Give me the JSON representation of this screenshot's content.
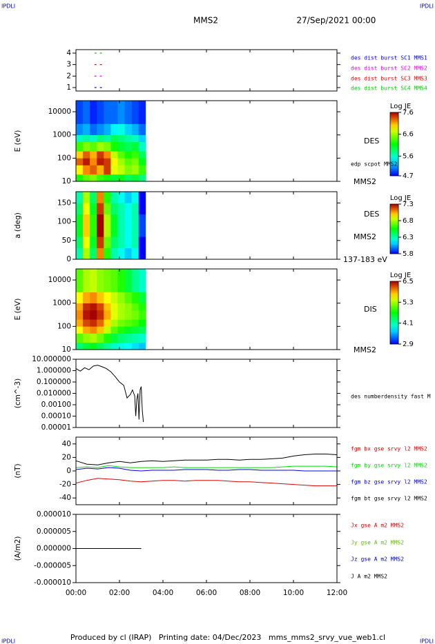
{
  "header": {
    "left_logo": "IPDLI",
    "right_logo": "IPDLI",
    "title": "MMS2",
    "date": "27/Sep/2021 00:00"
  },
  "footer": {
    "text": "Produced by cl (IRAP)   Printing date: 04/Dec/2023   mms_mms2_srvy_vue_web1.cl",
    "left_logo": "IPDLI",
    "right_logo": "IPDLI"
  },
  "chart_data": [
    {
      "type": "event",
      "xlim": [
        0,
        12
      ],
      "ylim": [
        0.7,
        4.3
      ],
      "yticks": [
        1,
        2,
        3,
        4
      ],
      "series": [
        {
          "name": "des dist burst SC1 MMS1",
          "color": "#0000ff",
          "x": [
            0.85,
            1.1
          ],
          "values": [
            1,
            1
          ]
        },
        {
          "name": "des dist burst SC2 MMS2",
          "color": "#ee00ee",
          "x": [
            0.85,
            1.1
          ],
          "values": [
            2,
            2
          ]
        },
        {
          "name": "des dist burst SC3 MMS3",
          "color": "#ee0000",
          "x": [
            0.85,
            1.1
          ],
          "values": [
            3,
            3
          ]
        },
        {
          "name": "des dist burst SC4 MMS4",
          "color": "#00cc00",
          "x": [
            0.85,
            1.1
          ],
          "values": [
            4,
            4
          ]
        }
      ]
    },
    {
      "type": "heatmap",
      "ylabel": "E (eV)",
      "ylog": true,
      "xlim": [
        0,
        12
      ],
      "ylim": [
        10,
        30000
      ],
      "yticks": [
        10,
        100,
        1000,
        10000
      ],
      "x_bins": [
        0,
        0.32,
        0.64,
        0.96,
        1.28,
        1.6,
        1.92,
        2.24,
        2.56,
        2.88,
        3.2
      ],
      "y_bins": [
        10,
        20,
        50,
        100,
        200,
        500,
        1000,
        3000,
        30000
      ],
      "z": [
        [
          6.2,
          6.4,
          6.5,
          6.3,
          6.2,
          6.0,
          6.1,
          5.9,
          6.0,
          5.8
        ],
        [
          6.9,
          7.2,
          7.3,
          7.1,
          7.4,
          6.8,
          6.7,
          6.5,
          6.6,
          6.3
        ],
        [
          7.3,
          7.5,
          7.2,
          7.5,
          7.4,
          6.9,
          6.6,
          6.4,
          6.5,
          6.1
        ],
        [
          7.0,
          7.3,
          7.1,
          7.4,
          7.2,
          6.7,
          6.4,
          6.2,
          6.3,
          5.9
        ],
        [
          6.3,
          6.5,
          6.4,
          6.6,
          6.5,
          6.2,
          6.0,
          5.9,
          6.0,
          5.6
        ],
        [
          5.6,
          5.7,
          5.6,
          5.8,
          5.7,
          5.9,
          5.8,
          5.7,
          5.6,
          5.3
        ],
        [
          5.1,
          5.2,
          5.0,
          5.1,
          5.2,
          5.4,
          5.5,
          5.3,
          5.2,
          5.0
        ],
        [
          4.9,
          5.0,
          4.8,
          4.9,
          5.0,
          5.0,
          5.1,
          5.0,
          4.9,
          4.8
        ]
      ],
      "colorbar": {
        "title": "Log JE",
        "zlim": [
          4.7,
          7.6
        ],
        "ticks": [
          4.7,
          5.6,
          6.6,
          7.6
        ]
      },
      "annotations": [
        "DES",
        "edp scpot MMS2",
        "MMS2"
      ]
    },
    {
      "type": "heatmap",
      "ylabel": "a (deg)",
      "xlim": [
        0,
        12
      ],
      "ylim": [
        0,
        180
      ],
      "yticks": [
        0,
        50,
        100,
        150
      ],
      "x_bins": [
        0,
        0.32,
        0.64,
        0.96,
        1.28,
        1.6,
        1.92,
        2.24,
        2.56,
        2.88,
        3.2
      ],
      "y_bins": [
        0,
        30,
        60,
        90,
        120,
        150,
        180
      ],
      "z": [
        [
          6.3,
          6.8,
          6.4,
          7.1,
          6.6,
          6.3,
          6.2,
          6.1,
          6.2,
          5.8
        ],
        [
          6.4,
          6.9,
          6.5,
          7.2,
          6.7,
          6.4,
          6.3,
          6.2,
          6.3,
          5.8
        ],
        [
          6.5,
          7.0,
          6.6,
          7.3,
          6.8,
          6.5,
          6.3,
          6.2,
          6.3,
          5.9
        ],
        [
          6.5,
          7.0,
          6.6,
          7.3,
          6.8,
          6.5,
          6.3,
          6.2,
          6.3,
          5.9
        ],
        [
          6.4,
          6.9,
          6.5,
          7.2,
          6.7,
          6.4,
          6.3,
          6.2,
          6.3,
          5.8
        ],
        [
          6.3,
          6.8,
          6.4,
          7.1,
          6.6,
          6.3,
          6.2,
          6.1,
          6.2,
          5.8
        ]
      ],
      "colorbar": {
        "title": "Log JE",
        "zlim": [
          5.8,
          7.3
        ],
        "ticks": [
          5.8,
          6.3,
          6.8,
          7.3
        ]
      },
      "annotations": [
        "DES",
        "MMS2",
        "137-183 eV"
      ]
    },
    {
      "type": "heatmap",
      "ylabel": "E (eV)",
      "ylog": true,
      "xlim": [
        0,
        12
      ],
      "ylim": [
        10,
        30000
      ],
      "yticks": [
        10,
        100,
        1000,
        10000
      ],
      "x_bins": [
        0,
        0.32,
        0.64,
        0.96,
        1.28,
        1.6,
        1.92,
        2.24,
        2.56,
        2.88,
        3.2
      ],
      "y_bins": [
        10,
        20,
        50,
        100,
        200,
        500,
        1000,
        3000,
        30000
      ],
      "z": [
        [
          4.3,
          4.5,
          4.6,
          4.4,
          4.2,
          4.0,
          3.9,
          3.8,
          3.7,
          3.6
        ],
        [
          5.0,
          5.2,
          5.3,
          5.1,
          4.8,
          4.5,
          4.3,
          4.2,
          4.1,
          4.0
        ],
        [
          5.6,
          5.9,
          6.0,
          5.8,
          5.4,
          5.0,
          4.8,
          4.6,
          4.5,
          4.4
        ],
        [
          5.9,
          6.2,
          6.3,
          6.1,
          5.7,
          5.3,
          5.1,
          5.0,
          4.9,
          4.7
        ],
        [
          6.0,
          6.4,
          6.5,
          6.3,
          5.9,
          5.5,
          5.3,
          5.2,
          5.1,
          4.9
        ],
        [
          5.9,
          6.3,
          6.4,
          6.2,
          5.8,
          5.5,
          5.3,
          5.2,
          5.0,
          4.8
        ],
        [
          5.6,
          5.9,
          6.0,
          5.8,
          5.6,
          5.4,
          5.2,
          5.0,
          4.8,
          4.5
        ],
        [
          5.0,
          5.3,
          5.4,
          5.2,
          5.1,
          5.0,
          4.8,
          4.5,
          4.2,
          4.0
        ]
      ],
      "colorbar": {
        "title": "Log JE",
        "zlim": [
          2.9,
          6.5
        ],
        "ticks": [
          2.9,
          4.1,
          5.3,
          6.5
        ]
      },
      "annotations": [
        "DIS",
        "MMS2"
      ]
    },
    {
      "type": "line",
      "ylabel": "(cm^-3)",
      "ylog": true,
      "xlim": [
        0,
        12
      ],
      "ylim": [
        1e-05,
        10
      ],
      "yticks": [
        {
          "value": 10,
          "label": "10.000000"
        },
        {
          "value": 1,
          "label": "1.000000"
        },
        {
          "value": 0.1,
          "label": "0.100000"
        },
        {
          "value": 0.01,
          "label": "0.010000"
        },
        {
          "value": 0.001,
          "label": "0.00100"
        },
        {
          "value": 0.0001,
          "label": "0.00010"
        },
        {
          "value": 1e-05,
          "label": "0.00001"
        }
      ],
      "series": [
        {
          "name": "des numberdensity fast M",
          "color": "#000000",
          "x": [
            0,
            0.2,
            0.4,
            0.6,
            0.8,
            1.0,
            1.2,
            1.4,
            1.6,
            1.8,
            2.0,
            2.2,
            2.35,
            2.5,
            2.6,
            2.7,
            2.75,
            2.8,
            2.85,
            2.9,
            2.95,
            3.0,
            3.05,
            3.1
          ],
          "values": [
            1.5,
            0.9,
            1.8,
            1.2,
            2.5,
            3.0,
            2.2,
            1.5,
            0.8,
            0.3,
            0.1,
            0.05,
            0.004,
            0.008,
            0.02,
            0.006,
            0.0001,
            0.003,
            0.01,
            5e-05,
            0.02,
            0.04,
            0.0003,
            3e-05
          ]
        }
      ]
    },
    {
      "type": "line",
      "ylabel": "(nT)",
      "xlim": [
        0,
        12
      ],
      "ylim": [
        -50,
        50
      ],
      "yticks": [
        -40,
        -20,
        0,
        20,
        40
      ],
      "series": [
        {
          "name": "fgm bx gse srvy l2 MMS2",
          "color": "#dd0000",
          "x": [
            0,
            0.5,
            1,
            1.5,
            2,
            2.5,
            3,
            3.5,
            4,
            4.5,
            5,
            5.5,
            6,
            6.5,
            7,
            7.5,
            8,
            8.5,
            9,
            9.5,
            10,
            10.5,
            11,
            11.5,
            12
          ],
          "values": [
            -18,
            -14,
            -11,
            -12,
            -13,
            -15,
            -16,
            -15,
            -14,
            -14,
            -15,
            -14,
            -14,
            -14,
            -15,
            -16,
            -16,
            -17,
            -18,
            -19,
            -20,
            -21,
            -22,
            -22,
            -22
          ]
        },
        {
          "name": "fgm by gse srvy l2 MMS2",
          "color": "#00dd00",
          "x": [
            0,
            0.5,
            1,
            1.5,
            2,
            2.5,
            3,
            3.5,
            4,
            4.5,
            5,
            5.5,
            6,
            6.5,
            7,
            7.5,
            8,
            8.5,
            9,
            9.5,
            10,
            10.5,
            11,
            11.5,
            12
          ],
          "values": [
            5,
            6,
            5,
            8,
            6,
            5,
            5,
            5,
            5,
            6,
            5,
            5,
            5,
            5,
            5,
            5,
            5,
            5,
            5,
            6,
            7,
            7,
            7,
            7,
            6
          ]
        },
        {
          "name": "fgm bz gse srvy l2 MMS2",
          "color": "#0000dd",
          "x": [
            0,
            0.5,
            1,
            1.5,
            2,
            2.5,
            3,
            3.5,
            4,
            4.5,
            5,
            5.5,
            6,
            6.5,
            7,
            7.5,
            8,
            8.5,
            9,
            9.5,
            10,
            10.5,
            11,
            11.5,
            12
          ],
          "values": [
            2,
            4,
            3,
            5,
            4,
            1,
            0,
            1,
            1,
            1,
            2,
            2,
            2,
            1,
            1,
            2,
            2,
            1,
            1,
            1,
            1,
            0,
            0,
            0,
            0
          ]
        },
        {
          "name": "fgm bt gse srvy l2 MMS2",
          "color": "#000000",
          "x": [
            0,
            0.5,
            1,
            1.5,
            2,
            2.5,
            3,
            3.5,
            4,
            4.5,
            5,
            5.5,
            6,
            6.5,
            7,
            7.5,
            8,
            8.5,
            9,
            9.5,
            10,
            10.5,
            11,
            11.5,
            12
          ],
          "values": [
            15,
            10,
            9,
            12,
            14,
            12,
            14,
            15,
            14,
            15,
            16,
            16,
            16,
            17,
            17,
            16,
            17,
            17,
            18,
            19,
            22,
            24,
            25,
            25,
            24
          ]
        }
      ]
    },
    {
      "type": "line",
      "ylabel": "(A/m2)",
      "xlim": [
        0,
        12
      ],
      "ylim": [
        -1e-05,
        1e-05
      ],
      "yticks": [
        {
          "value": 1e-05,
          "label": "0.000010"
        },
        {
          "value": 5e-06,
          "label": "0.000005"
        },
        {
          "value": 0,
          "label": "0.000000"
        },
        {
          "value": -5e-06,
          "label": "-0.000005"
        },
        {
          "value": -1e-05,
          "label": "-0.000010"
        }
      ],
      "xticks": [
        {
          "value": 0,
          "label": "00:00"
        },
        {
          "value": 2,
          "label": "02:00"
        },
        {
          "value": 4,
          "label": "04:00"
        },
        {
          "value": 6,
          "label": "06:00"
        },
        {
          "value": 8,
          "label": "08:00"
        },
        {
          "value": 10,
          "label": "10:00"
        },
        {
          "value": 12,
          "label": "12:00"
        }
      ],
      "series": [
        {
          "name": "Jx gse A m2 MMS2",
          "color": "#dd0000",
          "x": [
            0,
            1,
            2,
            3
          ],
          "values": [
            0,
            0,
            0,
            0
          ]
        },
        {
          "name": "Jy gse A m2 MMS2",
          "color": "#66bb00",
          "x": [
            0,
            1,
            2,
            3
          ],
          "values": [
            0,
            0,
            0,
            0
          ]
        },
        {
          "name": "Jz gse A m2 MMS2",
          "color": "#0000dd",
          "x": [
            0,
            1,
            2,
            3
          ],
          "values": [
            0,
            0,
            0,
            0
          ]
        },
        {
          "name": "J A m2 MMS2",
          "color": "#000000",
          "x": [
            0,
            1,
            2,
            3
          ],
          "values": [
            0,
            0,
            0,
            0
          ]
        }
      ]
    }
  ]
}
